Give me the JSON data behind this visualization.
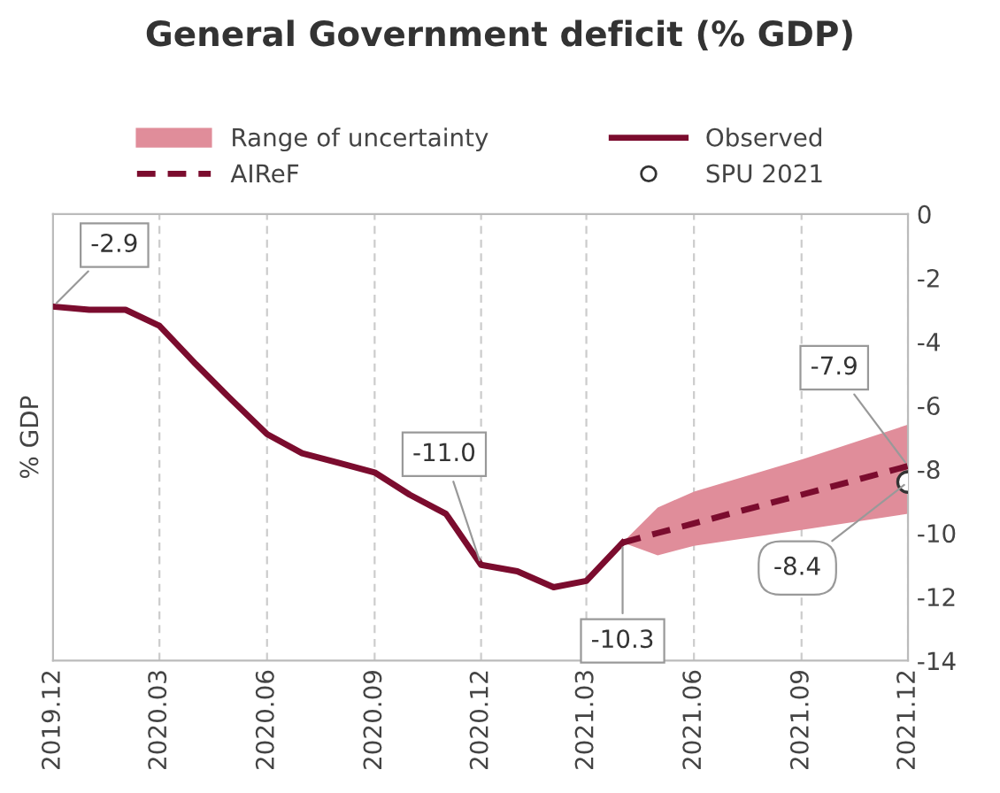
{
  "chart_data": {
    "type": "line",
    "title": "General Government deficit (% GDP)",
    "ylabel": "% GDP",
    "series": [
      {
        "name": "Range of uncertainty",
        "type": "area",
        "color": "#e08d9a"
      },
      {
        "name": "Observed",
        "type": "line",
        "color": "#7b0c2e",
        "line_style": "solid",
        "x": [
          "2019-12",
          "2020-01",
          "2020-02",
          "2020-03",
          "2020-04",
          "2020-05",
          "2020-06",
          "2020-07",
          "2020-08",
          "2020-09",
          "2020-10",
          "2020-11",
          "2020-12",
          "2021-01",
          "2021-02",
          "2021-03",
          "2021-04"
        ],
        "values": [
          -2.9,
          -3.0,
          -3.0,
          -3.5,
          -4.7,
          -5.8,
          -6.9,
          -7.5,
          -7.8,
          -8.1,
          -8.8,
          -9.4,
          -11.0,
          -11.2,
          -11.7,
          -11.5,
          -10.3
        ]
      },
      {
        "name": "AIReF",
        "type": "line",
        "color": "#7b0c2e",
        "line_style": "dashed",
        "x": [
          "2021-04",
          "2021-05",
          "2021-06",
          "2021-09",
          "2021-12"
        ],
        "values": [
          -10.3,
          -10.0,
          -9.7,
          -8.8,
          -7.9
        ],
        "lower": [
          -10.3,
          -10.7,
          -10.4,
          -9.9,
          -9.4
        ],
        "upper": [
          -10.3,
          -9.2,
          -8.7,
          -7.7,
          -6.6
        ]
      },
      {
        "name": "SPU 2021",
        "type": "scatter",
        "color": "#ffffff",
        "marker": "circle",
        "x": [
          "2021-12"
        ],
        "values": [
          -8.4
        ]
      }
    ],
    "annotations": [
      {
        "text": "-2.9",
        "x": "2019-12",
        "y": -2.9
      },
      {
        "text": "-11.0",
        "x": "2020-12",
        "y": -11.0
      },
      {
        "text": "-10.3",
        "x": "2021-04",
        "y": -10.3
      },
      {
        "text": "-7.9",
        "x": "2021-12",
        "y": -7.9
      },
      {
        "text": "-8.4",
        "x": "2021-12",
        "y": -8.4
      }
    ],
    "xlim": [
      "2019-12",
      "2021-12"
    ],
    "xticks": [
      {
        "value": "2019-12",
        "label": "2019.12"
      },
      {
        "value": "2020-03",
        "label": "2020.03"
      },
      {
        "value": "2020-06",
        "label": "2020.06"
      },
      {
        "value": "2020-09",
        "label": "2020.09"
      },
      {
        "value": "2020-12",
        "label": "2020.12"
      },
      {
        "value": "2021-03",
        "label": "2021.03"
      },
      {
        "value": "2021-06",
        "label": "2021.06"
      },
      {
        "value": "2021-09",
        "label": "2021.09"
      },
      {
        "value": "2021-12",
        "label": "2021.12"
      }
    ],
    "ylim": [
      -14,
      0
    ],
    "yticks": [
      0,
      -2,
      -4,
      -6,
      -8,
      -10,
      -12,
      -14
    ],
    "grid": "x",
    "legend": "top"
  }
}
